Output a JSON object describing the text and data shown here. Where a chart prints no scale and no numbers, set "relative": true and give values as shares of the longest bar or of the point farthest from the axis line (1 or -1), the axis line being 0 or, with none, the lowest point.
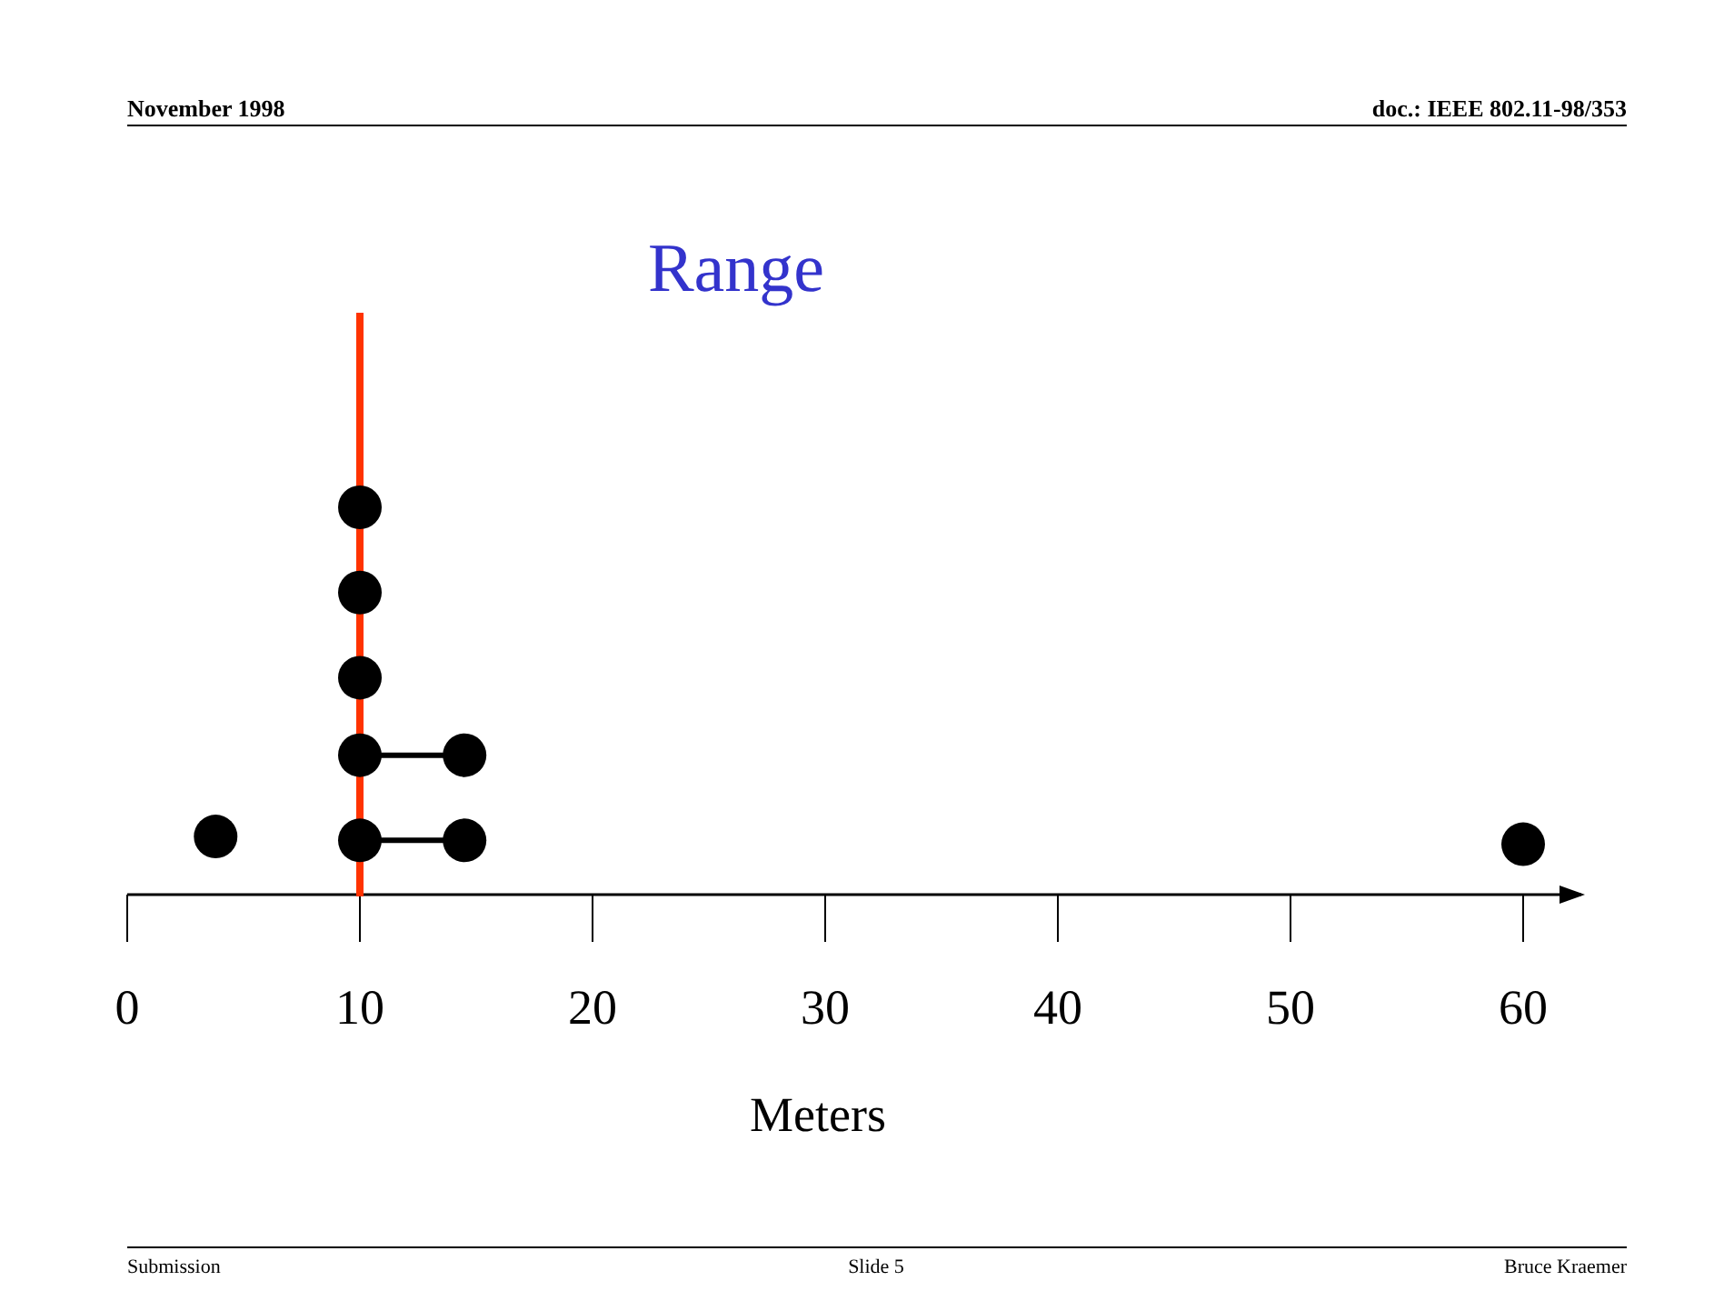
{
  "chart_data": {
    "type": "scatter",
    "title": "Range",
    "xlabel": "Meters",
    "relative": true,
    "marker": "circle",
    "grid": false,
    "xlim": [
      0,
      62.5
    ],
    "xticks": [
      0,
      10,
      20,
      30,
      40,
      50,
      60
    ],
    "series": [
      {
        "type": "line",
        "color": "#000000",
        "marker": "none",
        "x": [
          10,
          14.5
        ],
        "values": [
          0.14,
          0.14
        ]
      },
      {
        "type": "line",
        "color": "#000000",
        "marker": "none",
        "x": [
          10,
          14.5
        ],
        "values": [
          0.36,
          0.36
        ]
      },
      {
        "color": "#000000",
        "x": [
          3.8,
          10,
          10,
          10,
          10,
          10,
          14.5,
          14.5,
          60
        ],
        "values": [
          0.15,
          0.14,
          0.36,
          0.56,
          0.78,
          1.0,
          0.14,
          0.36,
          0.13
        ]
      }
    ],
    "ref_lines": [
      {
        "axis": "x",
        "value": 10,
        "color": "#ff3300"
      }
    ],
    "annotations": [
      "November 1998",
      "doc.: IEEE 802.11-98/353",
      "Submission",
      "Slide 5",
      "Bruce Kraemer"
    ]
  }
}
